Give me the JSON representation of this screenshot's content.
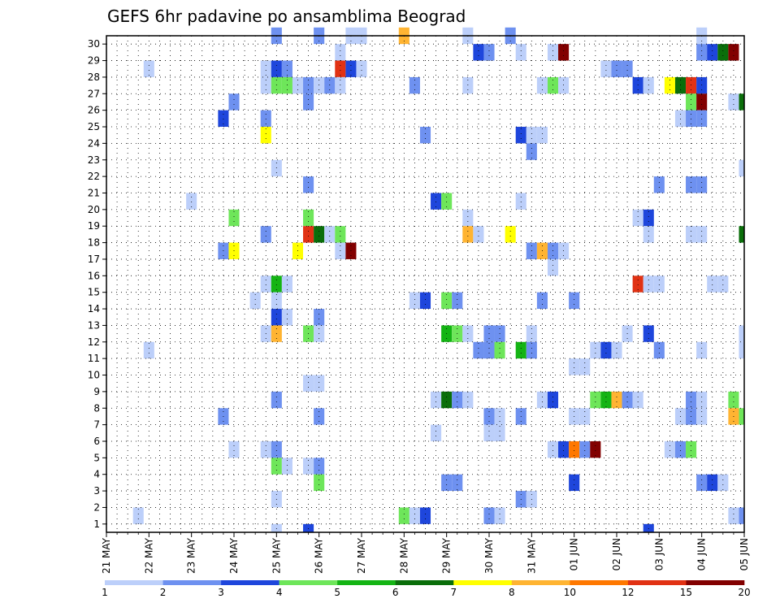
{
  "chart_data": {
    "type": "heatmap",
    "title": "GEFS 6hr padavine po ansamblima Beograd",
    "xlabel": "",
    "ylabel": "",
    "x_tick_labels": [
      "21 MAY",
      "22 MAY",
      "23 MAY",
      "24 MAY",
      "25 MAY",
      "26 MAY",
      "27 MAY",
      "28 MAY",
      "29 MAY",
      "30 MAY",
      "31 MAY",
      "01 JUN",
      "02 JUN",
      "03 JUN",
      "04 JUN",
      "05 JUN"
    ],
    "y_tick_labels": [
      "1",
      "2",
      "3",
      "4",
      "5",
      "6",
      "7",
      "8",
      "9",
      "10",
      "11",
      "12",
      "13",
      "14",
      "15",
      "16",
      "17",
      "18",
      "19",
      "20",
      "21",
      "22",
      "23",
      "24",
      "25",
      "26",
      "27",
      "28",
      "29",
      "30"
    ],
    "time_steps_per_day": 4,
    "member_range": [
      1,
      30
    ],
    "grid": true,
    "colorbar": {
      "position": "bottom",
      "colors": [
        "#bccffa",
        "#6e91f0",
        "#1e46dc",
        "#6ee65a",
        "#14b414",
        "#0a6e0a",
        "#ffff00",
        "#ffb432",
        "#ff7800",
        "#e13214",
        "#820000"
      ],
      "labels": [
        "1",
        "2",
        "3",
        "4",
        "5",
        "6",
        "7",
        "8",
        "10",
        "12",
        "15",
        "20"
      ]
    },
    "cells": [
      {
        "member": 30,
        "step": 16,
        "level": 2
      },
      {
        "member": 30,
        "step": 20,
        "level": 2
      },
      {
        "member": 30,
        "step": 23,
        "level": 1
      },
      {
        "member": 30,
        "step": 24,
        "level": 1
      },
      {
        "member": 30,
        "step": 28,
        "level": 8
      },
      {
        "member": 30,
        "step": 34,
        "level": 1
      },
      {
        "member": 30,
        "step": 38,
        "level": 2
      },
      {
        "member": 30,
        "step": 56,
        "level": 1
      },
      {
        "member": 29,
        "step": 22,
        "level": 1
      },
      {
        "member": 29,
        "step": 35,
        "level": 3
      },
      {
        "member": 29,
        "step": 36,
        "level": 2
      },
      {
        "member": 29,
        "step": 39,
        "level": 1
      },
      {
        "member": 29,
        "step": 42,
        "level": 1
      },
      {
        "member": 29,
        "step": 43,
        "level": 11
      },
      {
        "member": 29,
        "step": 56,
        "level": 2
      },
      {
        "member": 29,
        "step": 57,
        "level": 3
      },
      {
        "member": 29,
        "step": 58,
        "level": 6
      },
      {
        "member": 29,
        "step": 59,
        "level": 11
      },
      {
        "member": 28,
        "step": 4,
        "level": 1
      },
      {
        "member": 28,
        "step": 15,
        "level": 1
      },
      {
        "member": 28,
        "step": 16,
        "level": 3
      },
      {
        "member": 28,
        "step": 17,
        "level": 2
      },
      {
        "member": 28,
        "step": 22,
        "level": 10
      },
      {
        "member": 28,
        "step": 23,
        "level": 3
      },
      {
        "member": 28,
        "step": 24,
        "level": 1
      },
      {
        "member": 28,
        "step": 47,
        "level": 1
      },
      {
        "member": 28,
        "step": 48,
        "level": 2
      },
      {
        "member": 28,
        "step": 49,
        "level": 2
      },
      {
        "member": 27,
        "step": 15,
        "level": 1
      },
      {
        "member": 27,
        "step": 16,
        "level": 4
      },
      {
        "member": 27,
        "step": 17,
        "level": 4
      },
      {
        "member": 27,
        "step": 18,
        "level": 1
      },
      {
        "member": 27,
        "step": 19,
        "level": 2
      },
      {
        "member": 27,
        "step": 20,
        "level": 1
      },
      {
        "member": 27,
        "step": 21,
        "level": 2
      },
      {
        "member": 27,
        "step": 22,
        "level": 1
      },
      {
        "member": 27,
        "step": 29,
        "level": 2
      },
      {
        "member": 27,
        "step": 34,
        "level": 1
      },
      {
        "member": 27,
        "step": 41,
        "level": 1
      },
      {
        "member": 27,
        "step": 42,
        "level": 4
      },
      {
        "member": 27,
        "step": 43,
        "level": 1
      },
      {
        "member": 27,
        "step": 50,
        "level": 3
      },
      {
        "member": 27,
        "step": 51,
        "level": 1
      },
      {
        "member": 27,
        "step": 53,
        "level": 7
      },
      {
        "member": 27,
        "step": 54,
        "level": 6
      },
      {
        "member": 27,
        "step": 55,
        "level": 10
      },
      {
        "member": 27,
        "step": 56,
        "level": 3
      },
      {
        "member": 26,
        "step": 12,
        "level": 2
      },
      {
        "member": 26,
        "step": 19,
        "level": 2
      },
      {
        "member": 26,
        "step": 55,
        "level": 4
      },
      {
        "member": 26,
        "step": 56,
        "level": 11
      },
      {
        "member": 26,
        "step": 59,
        "level": 1
      },
      {
        "member": 26,
        "step": 60,
        "level": 6
      },
      {
        "member": 25,
        "step": 11,
        "level": 3
      },
      {
        "member": 25,
        "step": 15,
        "level": 2
      },
      {
        "member": 25,
        "step": 54,
        "level": 1
      },
      {
        "member": 25,
        "step": 55,
        "level": 2
      },
      {
        "member": 25,
        "step": 56,
        "level": 2
      },
      {
        "member": 24,
        "step": 15,
        "level": 7
      },
      {
        "member": 24,
        "step": 30,
        "level": 2
      },
      {
        "member": 24,
        "step": 39,
        "level": 3
      },
      {
        "member": 24,
        "step": 40,
        "level": 1
      },
      {
        "member": 24,
        "step": 41,
        "level": 1
      },
      {
        "member": 23,
        "step": 40,
        "level": 2
      },
      {
        "member": 22,
        "step": 16,
        "level": 1
      },
      {
        "member": 22,
        "step": 60,
        "level": 1
      },
      {
        "member": 21,
        "step": 19,
        "level": 2
      },
      {
        "member": 21,
        "step": 52,
        "level": 2
      },
      {
        "member": 21,
        "step": 55,
        "level": 2
      },
      {
        "member": 21,
        "step": 56,
        "level": 2
      },
      {
        "member": 20,
        "step": 8,
        "level": 1
      },
      {
        "member": 20,
        "step": 31,
        "level": 3
      },
      {
        "member": 20,
        "step": 32,
        "level": 4
      },
      {
        "member": 20,
        "step": 39,
        "level": 1
      },
      {
        "member": 19,
        "step": 12,
        "level": 4
      },
      {
        "member": 19,
        "step": 19,
        "level": 4
      },
      {
        "member": 19,
        "step": 34,
        "level": 1
      },
      {
        "member": 19,
        "step": 50,
        "level": 1
      },
      {
        "member": 19,
        "step": 51,
        "level": 3
      },
      {
        "member": 18,
        "step": 15,
        "level": 2
      },
      {
        "member": 18,
        "step": 19,
        "level": 10
      },
      {
        "member": 18,
        "step": 20,
        "level": 6
      },
      {
        "member": 18,
        "step": 21,
        "level": 1
      },
      {
        "member": 18,
        "step": 22,
        "level": 4
      },
      {
        "member": 18,
        "step": 34,
        "level": 8
      },
      {
        "member": 18,
        "step": 35,
        "level": 1
      },
      {
        "member": 18,
        "step": 38,
        "level": 7
      },
      {
        "member": 18,
        "step": 51,
        "level": 1
      },
      {
        "member": 18,
        "step": 55,
        "level": 1
      },
      {
        "member": 18,
        "step": 56,
        "level": 1
      },
      {
        "member": 18,
        "step": 60,
        "level": 6
      },
      {
        "member": 17,
        "step": 11,
        "level": 2
      },
      {
        "member": 17,
        "step": 12,
        "level": 7
      },
      {
        "member": 17,
        "step": 18,
        "level": 7
      },
      {
        "member": 17,
        "step": 22,
        "level": 1
      },
      {
        "member": 17,
        "step": 23,
        "level": 11
      },
      {
        "member": 17,
        "step": 40,
        "level": 2
      },
      {
        "member": 17,
        "step": 41,
        "level": 8
      },
      {
        "member": 17,
        "step": 42,
        "level": 2
      },
      {
        "member": 17,
        "step": 43,
        "level": 1
      },
      {
        "member": 16,
        "step": 42,
        "level": 1
      },
      {
        "member": 15,
        "step": 15,
        "level": 1
      },
      {
        "member": 15,
        "step": 16,
        "level": 5
      },
      {
        "member": 15,
        "step": 17,
        "level": 1
      },
      {
        "member": 15,
        "step": 50,
        "level": 10
      },
      {
        "member": 15,
        "step": 51,
        "level": 1
      },
      {
        "member": 15,
        "step": 52,
        "level": 1
      },
      {
        "member": 15,
        "step": 57,
        "level": 1
      },
      {
        "member": 15,
        "step": 58,
        "level": 1
      },
      {
        "member": 14,
        "step": 14,
        "level": 1
      },
      {
        "member": 14,
        "step": 16,
        "level": 1
      },
      {
        "member": 14,
        "step": 29,
        "level": 1
      },
      {
        "member": 14,
        "step": 30,
        "level": 3
      },
      {
        "member": 14,
        "step": 32,
        "level": 4
      },
      {
        "member": 14,
        "step": 33,
        "level": 2
      },
      {
        "member": 14,
        "step": 41,
        "level": 2
      },
      {
        "member": 14,
        "step": 44,
        "level": 2
      },
      {
        "member": 13,
        "step": 16,
        "level": 3
      },
      {
        "member": 13,
        "step": 17,
        "level": 1
      },
      {
        "member": 13,
        "step": 20,
        "level": 2
      },
      {
        "member": 12,
        "step": 15,
        "level": 1
      },
      {
        "member": 12,
        "step": 16,
        "level": 8
      },
      {
        "member": 12,
        "step": 19,
        "level": 4
      },
      {
        "member": 12,
        "step": 20,
        "level": 1
      },
      {
        "member": 12,
        "step": 32,
        "level": 5
      },
      {
        "member": 12,
        "step": 33,
        "level": 4
      },
      {
        "member": 12,
        "step": 34,
        "level": 1
      },
      {
        "member": 12,
        "step": 36,
        "level": 2
      },
      {
        "member": 12,
        "step": 37,
        "level": 2
      },
      {
        "member": 12,
        "step": 40,
        "level": 1
      },
      {
        "member": 12,
        "step": 49,
        "level": 1
      },
      {
        "member": 12,
        "step": 51,
        "level": 3
      },
      {
        "member": 12,
        "step": 60,
        "level": 1
      },
      {
        "member": 11,
        "step": 4,
        "level": 1
      },
      {
        "member": 11,
        "step": 35,
        "level": 2
      },
      {
        "member": 11,
        "step": 36,
        "level": 2
      },
      {
        "member": 11,
        "step": 37,
        "level": 4
      },
      {
        "member": 11,
        "step": 39,
        "level": 5
      },
      {
        "member": 11,
        "step": 40,
        "level": 2
      },
      {
        "member": 11,
        "step": 46,
        "level": 1
      },
      {
        "member": 11,
        "step": 47,
        "level": 3
      },
      {
        "member": 11,
        "step": 48,
        "level": 1
      },
      {
        "member": 11,
        "step": 52,
        "level": 2
      },
      {
        "member": 11,
        "step": 56,
        "level": 1
      },
      {
        "member": 11,
        "step": 60,
        "level": 1
      },
      {
        "member": 10,
        "step": 44,
        "level": 1
      },
      {
        "member": 10,
        "step": 45,
        "level": 1
      },
      {
        "member": 9,
        "step": 19,
        "level": 1
      },
      {
        "member": 9,
        "step": 20,
        "level": 1
      },
      {
        "member": 8,
        "step": 16,
        "level": 2
      },
      {
        "member": 8,
        "step": 31,
        "level": 1
      },
      {
        "member": 8,
        "step": 32,
        "level": 6
      },
      {
        "member": 8,
        "step": 33,
        "level": 2
      },
      {
        "member": 8,
        "step": 34,
        "level": 1
      },
      {
        "member": 8,
        "step": 41,
        "level": 1
      },
      {
        "member": 8,
        "step": 42,
        "level": 3
      },
      {
        "member": 8,
        "step": 46,
        "level": 4
      },
      {
        "member": 8,
        "step": 47,
        "level": 5
      },
      {
        "member": 8,
        "step": 48,
        "level": 8
      },
      {
        "member": 8,
        "step": 49,
        "level": 2
      },
      {
        "member": 8,
        "step": 50,
        "level": 1
      },
      {
        "member": 8,
        "step": 55,
        "level": 2
      },
      {
        "member": 8,
        "step": 56,
        "level": 1
      },
      {
        "member": 8,
        "step": 59,
        "level": 4
      },
      {
        "member": 7,
        "step": 11,
        "level": 2
      },
      {
        "member": 7,
        "step": 20,
        "level": 2
      },
      {
        "member": 7,
        "step": 36,
        "level": 2
      },
      {
        "member": 7,
        "step": 37,
        "level": 1
      },
      {
        "member": 7,
        "step": 39,
        "level": 2
      },
      {
        "member": 7,
        "step": 44,
        "level": 1
      },
      {
        "member": 7,
        "step": 45,
        "level": 1
      },
      {
        "member": 7,
        "step": 54,
        "level": 1
      },
      {
        "member": 7,
        "step": 55,
        "level": 2
      },
      {
        "member": 7,
        "step": 56,
        "level": 1
      },
      {
        "member": 7,
        "step": 59,
        "level": 8
      },
      {
        "member": 7,
        "step": 60,
        "level": 4
      },
      {
        "member": 6,
        "step": 31,
        "level": 1
      },
      {
        "member": 6,
        "step": 36,
        "level": 1
      },
      {
        "member": 6,
        "step": 37,
        "level": 1
      },
      {
        "member": 5,
        "step": 12,
        "level": 1
      },
      {
        "member": 5,
        "step": 15,
        "level": 1
      },
      {
        "member": 5,
        "step": 16,
        "level": 2
      },
      {
        "member": 5,
        "step": 42,
        "level": 1
      },
      {
        "member": 5,
        "step": 43,
        "level": 3
      },
      {
        "member": 5,
        "step": 44,
        "level": 9
      },
      {
        "member": 5,
        "step": 45,
        "level": 2
      },
      {
        "member": 5,
        "step": 46,
        "level": 11
      },
      {
        "member": 5,
        "step": 53,
        "level": 1
      },
      {
        "member": 5,
        "step": 54,
        "level": 2
      },
      {
        "member": 5,
        "step": 55,
        "level": 4
      },
      {
        "member": 4,
        "step": 16,
        "level": 4
      },
      {
        "member": 4,
        "step": 17,
        "level": 1
      },
      {
        "member": 4,
        "step": 19,
        "level": 1
      },
      {
        "member": 4,
        "step": 20,
        "level": 2
      },
      {
        "member": 3,
        "step": 20,
        "level": 4
      },
      {
        "member": 3,
        "step": 32,
        "level": 2
      },
      {
        "member": 3,
        "step": 33,
        "level": 2
      },
      {
        "member": 3,
        "step": 44,
        "level": 3
      },
      {
        "member": 3,
        "step": 56,
        "level": 2
      },
      {
        "member": 3,
        "step": 57,
        "level": 3
      },
      {
        "member": 3,
        "step": 58,
        "level": 1
      },
      {
        "member": 2,
        "step": 16,
        "level": 1
      },
      {
        "member": 2,
        "step": 39,
        "level": 2
      },
      {
        "member": 2,
        "step": 40,
        "level": 1
      },
      {
        "member": 1,
        "step": 3,
        "level": 1
      },
      {
        "member": 1,
        "step": 28,
        "level": 4
      },
      {
        "member": 1,
        "step": 29,
        "level": 1
      },
      {
        "member": 1,
        "step": 30,
        "level": 3
      },
      {
        "member": 1,
        "step": 36,
        "level": 2
      },
      {
        "member": 1,
        "step": 37,
        "level": 1
      },
      {
        "member": 1,
        "step": 59,
        "level": 1
      },
      {
        "member": 1,
        "step": 60,
        "level": 2
      },
      {
        "member": 0,
        "step": 16,
        "level": 1
      },
      {
        "member": 0,
        "step": 19,
        "level": 3
      },
      {
        "member": 0,
        "step": 51,
        "level": 3
      }
    ]
  }
}
